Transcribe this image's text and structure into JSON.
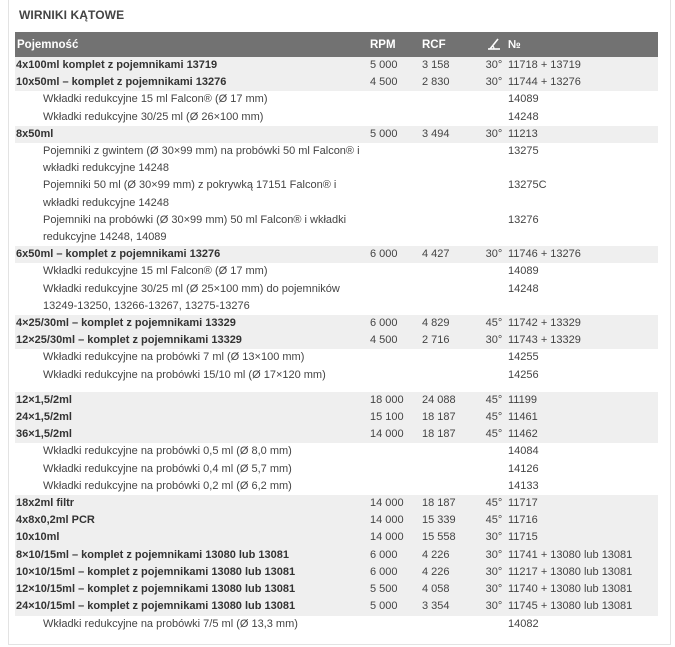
{
  "title": "WIRNIKI KĄTOWE",
  "header": {
    "name": "Pojemność",
    "rpm": "RPM",
    "rcf": "RCF",
    "angle_icon": "angle-icon",
    "number": "№"
  },
  "rows": [
    {
      "type": "main",
      "name": "4x100ml komplet z pojemnikami 13719",
      "rpm": "5 000",
      "rcf": "3 158",
      "angle": "30°",
      "no": "11718 + 13719"
    },
    {
      "type": "main",
      "name": "10x50ml – komplet z pojemnikami 13276",
      "rpm": "4 500",
      "rcf": "2 830",
      "angle": "30°",
      "no": "11744 + 13276"
    },
    {
      "type": "sub",
      "name": "Wkładki redukcyjne 15 ml Falcon® (Ø 17 mm)",
      "rpm": "",
      "rcf": "",
      "angle": "",
      "no": "14089"
    },
    {
      "type": "sub",
      "name": "Wkładki redukcyjne 30/25 ml (Ø 26×100 mm)",
      "rpm": "",
      "rcf": "",
      "angle": "",
      "no": "14248"
    },
    {
      "type": "main",
      "name": "8x50ml",
      "rpm": "5 000",
      "rcf": "3 494",
      "angle": "30°",
      "no": "11213"
    },
    {
      "type": "sub",
      "name": "Pojemniki z gwintem (Ø 30×99 mm) na probówki 50 ml Falcon® i wkładki redukcyjne 14248",
      "rpm": "",
      "rcf": "",
      "angle": "",
      "no": "13275"
    },
    {
      "type": "sub",
      "name": "Pojemniki 50 ml (Ø 30×99 mm) z pokrywką 17151 Falcon® i wkładki redukcyjne 14248",
      "rpm": "",
      "rcf": "",
      "angle": "",
      "no": "13275C"
    },
    {
      "type": "sub",
      "name": "Pojemniki na probówki  (Ø 30×99 mm) 50 ml Falcon® i wkładki redukcyjne 14248, 14089",
      "rpm": "",
      "rcf": "",
      "angle": "",
      "no": "13276"
    },
    {
      "type": "main",
      "name": "6x50ml – komplet z pojemnikami 13276",
      "rpm": "6 000",
      "rcf": "4 427",
      "angle": "30°",
      "no": "11746 + 13276"
    },
    {
      "type": "sub",
      "name": "Wkładki redukcyjne 15 ml Falcon® (Ø 17 mm)",
      "rpm": "",
      "rcf": "",
      "angle": "",
      "no": "14089"
    },
    {
      "type": "sub",
      "name": "Wkładki redukcyjne 30/25 ml (Ø 25×100 mm) do pojemników 13249-13250, 13266-13267, 13275-13276",
      "rpm": "",
      "rcf": "",
      "angle": "",
      "no": "14248"
    },
    {
      "type": "main",
      "name": "4×25/30ml – komplet z pojemnikami 13329",
      "rpm": "6 000",
      "rcf": "4 829",
      "angle": "45°",
      "no": "11742 + 13329"
    },
    {
      "type": "main",
      "name": "12×25/30ml – komplet z pojemnikami 13329",
      "rpm": "4 500",
      "rcf": "2 716",
      "angle": "30°",
      "no": "11743 + 13329"
    },
    {
      "type": "sub",
      "name": "Wkładki redukcyjne na probówki 7 ml (Ø 13×100 mm)",
      "rpm": "",
      "rcf": "",
      "angle": "",
      "no": "14255"
    },
    {
      "type": "sub",
      "name": "Wkładki redukcyjne na probówki 15/10 ml (Ø 17×120 mm)",
      "rpm": "",
      "rcf": "",
      "angle": "",
      "no": "14256"
    },
    {
      "type": "spacer"
    },
    {
      "type": "main",
      "name": "12×1,5/2ml",
      "rpm": "18 000",
      "rcf": "24 088",
      "angle": "45°",
      "no": "11199"
    },
    {
      "type": "main",
      "name": "24×1,5/2ml",
      "rpm": "15 100",
      "rcf": "18 187",
      "angle": "45°",
      "no": "11461"
    },
    {
      "type": "main",
      "name": "36×1,5/2ml",
      "rpm": "14 000",
      "rcf": "18 187",
      "angle": "45°",
      "no": "11462"
    },
    {
      "type": "sub",
      "name": "Wkładki redukcyjne na probówki 0,5 ml (Ø 8,0 mm)",
      "rpm": "",
      "rcf": "",
      "angle": "",
      "no": "14084"
    },
    {
      "type": "sub",
      "name": "Wkładki redukcyjne na probówki 0,4 ml (Ø 5,7 mm)",
      "rpm": "",
      "rcf": "",
      "angle": "",
      "no": "14126"
    },
    {
      "type": "sub",
      "name": "Wkładki redukcyjne na probówki 0,2 ml (Ø 6,2 mm)",
      "rpm": "",
      "rcf": "",
      "angle": "",
      "no": "14133"
    },
    {
      "type": "main",
      "name": "18x2ml filtr",
      "rpm": "14 000",
      "rcf": "18 187",
      "angle": "45°",
      "no": "11717"
    },
    {
      "type": "main",
      "name": "4x8x0,2ml PCR",
      "rpm": "14 000",
      "rcf": "15 339",
      "angle": "45°",
      "no": "11716"
    },
    {
      "type": "main",
      "name": "10x10ml",
      "rpm": "14 000",
      "rcf": "15 558",
      "angle": "30°",
      "no": "11715"
    },
    {
      "type": "main",
      "name": "8×10/15ml – komplet z pojemnikami 13080 lub 13081",
      "rpm": "6 000",
      "rcf": "4 226",
      "angle": "30°",
      "no": "11741 + 13080 lub 13081"
    },
    {
      "type": "main",
      "name": "10×10/15ml – komplet z pojemnikami 13080 lub 13081",
      "rpm": "6 000",
      "rcf": "4 226",
      "angle": "30°",
      "no": " 11217 + 13080 lub 13081"
    },
    {
      "type": "main",
      "name": "12×10/15ml  – komplet z pojemnikami 13080 lub 13081",
      "rpm": "5 500",
      "rcf": "4 058",
      "angle": "30°",
      "no": "11740 + 13080 lub 13081"
    },
    {
      "type": "main",
      "name": "24×10/15ml  – komplet z pojemnikami 13080 lub 13081",
      "rpm": "5 000",
      "rcf": "3 354",
      "angle": "30°",
      "no": "11745 + 13080 lub 13081"
    },
    {
      "type": "sub",
      "name": "Wkładki redukcyjne na probówki 7/5 ml (Ø 13,3 mm)",
      "rpm": "",
      "rcf": "",
      "angle": "",
      "no": "14082"
    }
  ]
}
